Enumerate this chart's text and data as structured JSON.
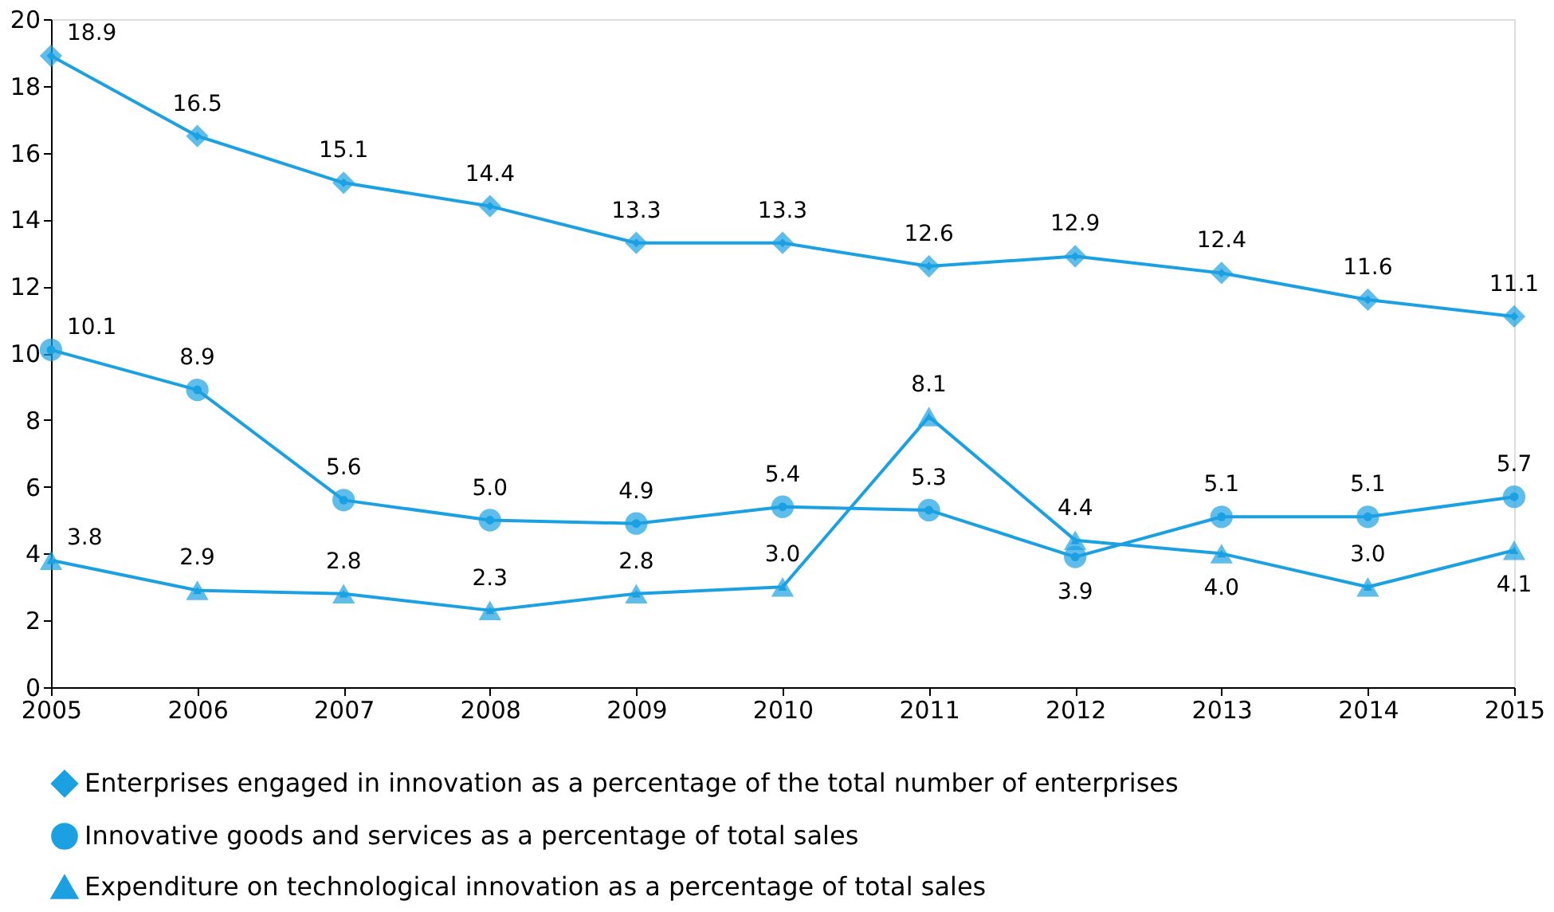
{
  "chart_data": {
    "type": "line",
    "x": [
      2005,
      2006,
      2007,
      2008,
      2009,
      2010,
      2011,
      2012,
      2013,
      2014,
      2015
    ],
    "xlim": [
      2005,
      2015
    ],
    "xticks": [
      2005,
      2006,
      2007,
      2008,
      2009,
      2010,
      2011,
      2012,
      2013,
      2014,
      2015
    ],
    "ylim": [
      0,
      20
    ],
    "yticks": [
      0,
      2,
      4,
      6,
      8,
      10,
      12,
      14,
      16,
      18,
      20
    ],
    "grid": false,
    "legend": "bottom",
    "line_style": "solid",
    "series": [
      {
        "name": "Enterprises engaged in innovation as a percentage of the total number of enterprises",
        "color": "#1ba1e2",
        "marker": "diamond",
        "values": [
          18.9,
          16.5,
          15.1,
          14.4,
          13.3,
          13.3,
          12.6,
          12.9,
          12.4,
          11.6,
          11.1
        ],
        "value_labels": [
          "18.9",
          "16.5",
          "15.1",
          "14.4",
          "13.3",
          "13.3",
          "12.6",
          "12.9",
          "12.4",
          "11.6",
          "11.1"
        ]
      },
      {
        "name": "Innovative goods and services as a percentage of total sales",
        "color": "#1ba1e2",
        "marker": "circle",
        "values": [
          10.1,
          8.9,
          5.6,
          5.0,
          4.9,
          5.4,
          5.3,
          3.9,
          5.1,
          5.1,
          5.7
        ],
        "value_labels": [
          "10.1",
          "8.9",
          "5.6",
          "5.0",
          "4.9",
          "5.4",
          "5.3",
          "3.9",
          "5.1",
          "5.1",
          "5.7"
        ]
      },
      {
        "name": "Expenditure on technological innovation as a percentage of total sales",
        "color": "#1ba1e2",
        "marker": "triangle",
        "values": [
          3.8,
          2.9,
          2.8,
          2.3,
          2.8,
          3.0,
          8.1,
          4.4,
          4.0,
          3.0,
          4.1
        ],
        "value_labels": [
          "3.8",
          "2.9",
          "2.8",
          "2.3",
          "2.8",
          "3.0",
          "8.1",
          "4.4",
          "4.0",
          "3.0",
          "4.1"
        ]
      }
    ]
  }
}
